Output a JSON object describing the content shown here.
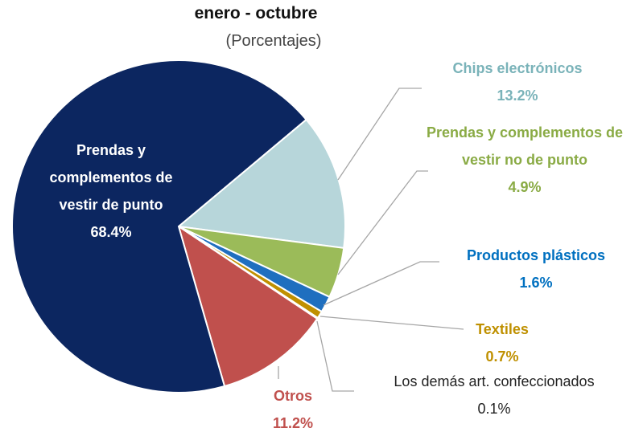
{
  "chart_data": {
    "type": "pie",
    "title": "enero - octubre",
    "subtitle": "(Porcentajes)",
    "categories": [
      "Chips electrónicos",
      "Prendas y complementos de vestir no de punto",
      "Productos plásticos",
      "Textiles",
      "Los demás art. confeccionados",
      "Otros",
      "Prendas y complementos de vestir de punto"
    ],
    "values": [
      13.2,
      4.9,
      1.6,
      0.7,
      0.1,
      11.2,
      68.4
    ],
    "value_labels": [
      "13.2%",
      "4.9%",
      "1.6%",
      "0.7%",
      "0.1%",
      "11.2%",
      "68.4%"
    ],
    "colors": [
      "#b7d6da",
      "#9bbb59",
      "#1f6fbf",
      "#c09000",
      "#9a9a9a",
      "#c0504d",
      "#0c2660"
    ]
  }
}
